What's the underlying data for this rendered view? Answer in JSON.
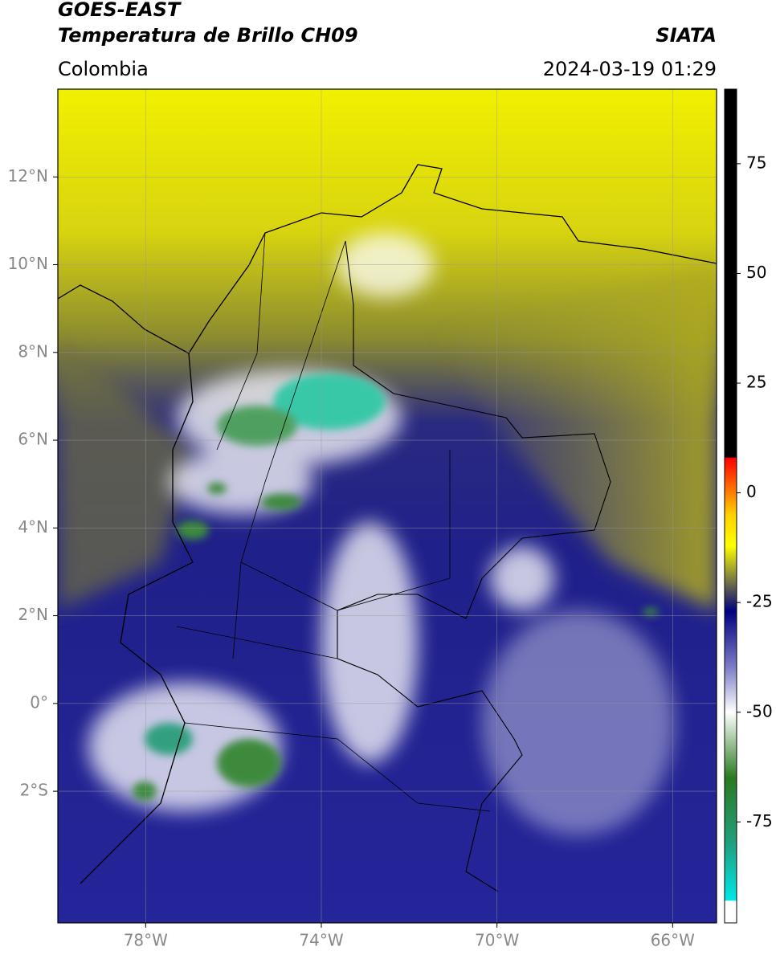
{
  "header": {
    "title": "GOES-EAST",
    "subtitle": "Temperatura de Brillo CH09",
    "source": "SIATA",
    "region": "Colombia",
    "timestamp": "2024-03-19 01:29"
  },
  "map": {
    "xlim": [
      -80,
      -65
    ],
    "ylim": [
      -5,
      14
    ],
    "xticks": [
      {
        "value": -78,
        "label": "78°W"
      },
      {
        "value": -74,
        "label": "74°W"
      },
      {
        "value": -70,
        "label": "70°W"
      },
      {
        "value": -66,
        "label": "66°W"
      }
    ],
    "yticks": [
      {
        "value": 12,
        "label": "12°N"
      },
      {
        "value": 10,
        "label": "10°N"
      },
      {
        "value": 8,
        "label": "8°N"
      },
      {
        "value": 6,
        "label": "6°N"
      },
      {
        "value": 4,
        "label": "4°N"
      },
      {
        "value": 2,
        "label": "2°N"
      },
      {
        "value": 0,
        "label": "0°"
      },
      {
        "value": -2,
        "label": "2°S"
      }
    ],
    "grid": true
  },
  "colorbar": {
    "lim": [
      -98,
      92
    ],
    "ticks": [
      75,
      50,
      25,
      0,
      -25,
      -50,
      -75
    ],
    "stops": [
      {
        "value": -98,
        "color": "#ffffff"
      },
      {
        "value": -93,
        "color": "#ffffff"
      },
      {
        "value": -92.9,
        "color": "#00e8e8"
      },
      {
        "value": -80,
        "color": "#20a080"
      },
      {
        "value": -65,
        "color": "#2a7a20"
      },
      {
        "value": -50,
        "color": "#ffffff"
      },
      {
        "value": -40,
        "color": "#8080c8"
      },
      {
        "value": -27,
        "color": "#000080"
      },
      {
        "value": -22,
        "color": "#555555"
      },
      {
        "value": -12,
        "color": "#ffff00"
      },
      {
        "value": -5,
        "color": "#ffd000"
      },
      {
        "value": 0,
        "color": "#ff8000"
      },
      {
        "value": 8,
        "color": "#ff0000"
      },
      {
        "value": 8.1,
        "color": "#000000"
      },
      {
        "value": 92,
        "color": "#000000"
      }
    ]
  }
}
